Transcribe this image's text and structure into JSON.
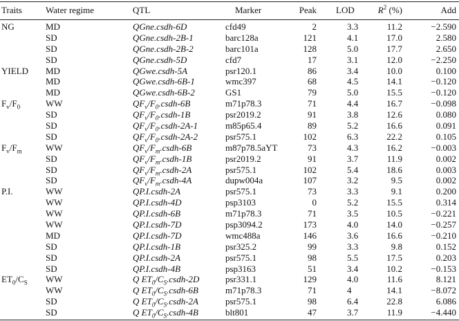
{
  "table": {
    "header": [
      "Traits",
      "Water regime",
      "QTL",
      "Marker",
      "Peak",
      "LOD",
      [
        {
          "it": "R"
        },
        {
          "sup": "2"
        },
        " (%)"
      ],
      "Add"
    ],
    "rows": [
      [
        "NG",
        "MD",
        "QGne.csdh-6D",
        "cfd49",
        "2",
        "3.3",
        "11.2",
        "−2.590"
      ],
      [
        null,
        "SD",
        "QGne.csdh-2B-1",
        "barc128a",
        "121",
        "4.1",
        "17.0",
        "2.580"
      ],
      [
        null,
        "SD",
        "QGne.csdh-2B-2",
        "barc101a",
        "128",
        "5.0",
        "17.7",
        "2.650"
      ],
      [
        null,
        "SD",
        "QGne.csdh-5D",
        "cfd7",
        "17",
        "3.1",
        "12.0",
        "−2.250"
      ],
      [
        "YIELD",
        "MD",
        "QGwe.csdh-5A",
        "psr120.1",
        "86",
        "3.4",
        "10.0",
        "0.100"
      ],
      [
        null,
        "MD",
        "QGwe.csdh-6B-1",
        "wmc397",
        "68",
        "4.5",
        "14.1",
        "−0.120"
      ],
      [
        null,
        "MD",
        "QGwe.csdh-6B-2",
        "GS1",
        "79",
        "5.0",
        "15.5",
        "−0.120"
      ],
      [
        [
          "F",
          {
            "sub": "v"
          },
          "/F",
          {
            "sub": "0"
          }
        ],
        "WW",
        [
          "QF",
          {
            "sub": "v"
          },
          "/F",
          {
            "sub": "0"
          },
          ".csdh-6B"
        ],
        "m71p78.3",
        "71",
        "4.4",
        "16.7",
        "−0.098"
      ],
      [
        null,
        "SD",
        [
          "QF",
          {
            "sub": "v"
          },
          "/F",
          {
            "sub": "0"
          },
          ".csdh-1B"
        ],
        "psr2019.2",
        "91",
        "3.8",
        "12.6",
        "0.080"
      ],
      [
        null,
        "SD",
        [
          "QF",
          {
            "sub": "v"
          },
          "/F",
          {
            "sub": "0"
          },
          ".csdh-2A-1"
        ],
        "m85p65.4",
        "89",
        "5.2",
        "16.6",
        "0.091"
      ],
      [
        null,
        "SD",
        [
          "QF",
          {
            "sub": "v"
          },
          "/F",
          {
            "sub": "0"
          },
          ".csdh-2A-2"
        ],
        "psr575.1",
        "102",
        "6.3",
        "22.2",
        "0.105"
      ],
      [
        [
          "F",
          {
            "sub": "v"
          },
          "/F",
          {
            "sub": "m"
          }
        ],
        "WW",
        [
          "QF",
          {
            "sub": "v"
          },
          "/F",
          {
            "sub": "m"
          },
          ".csdh-6B"
        ],
        "m87p78.5aYT",
        "73",
        "4.3",
        "16.2",
        "−0.003"
      ],
      [
        null,
        "SD",
        [
          "QF",
          {
            "sub": "v"
          },
          "/F",
          {
            "sub": "m"
          },
          ".csdh-1B"
        ],
        "psr2019.2",
        "91",
        "3.7",
        "11.9",
        "0.002"
      ],
      [
        null,
        "SD",
        [
          "QF",
          {
            "sub": "v"
          },
          "/F",
          {
            "sub": "m"
          },
          ".csdh-2A"
        ],
        "psr575.1",
        "102",
        "5.4",
        "18.6",
        "0.003"
      ],
      [
        null,
        "SD",
        [
          "QF",
          {
            "sub": "v"
          },
          "/F",
          {
            "sub": "m"
          },
          ".csdh-4A"
        ],
        "dupw004a",
        "107",
        "3.2",
        "9.5",
        "0.002"
      ],
      [
        "P.I.",
        "WW",
        "QP.I.csdh-2A",
        "psr575.1",
        "73",
        "3.3",
        "9.1",
        "0.200"
      ],
      [
        null,
        "WW",
        "QP.I.csdh-4D",
        "psp3103",
        "0",
        "5.2",
        "15.5",
        "0.314"
      ],
      [
        null,
        "WW",
        "QP.I.csdh-6B",
        "m71p78.3",
        "71",
        "3.5",
        "10.5",
        "−0.221"
      ],
      [
        null,
        "WW",
        "QP.I.csdh-7D",
        "psp3094.2",
        "173",
        "4.0",
        "14.0",
        "−0.257"
      ],
      [
        null,
        "MD",
        "QP.I.csdh-7D",
        "wmc488a",
        "146",
        "3.6",
        "16.6",
        "−0.210"
      ],
      [
        null,
        "SD",
        "QP.I.csdh-1B",
        "psr325.2",
        "99",
        "3.3",
        "9.8",
        "0.152"
      ],
      [
        null,
        "SD",
        "QP.I.csdh-2A",
        "psr575.1",
        "98",
        "5.5",
        "17.5",
        "0.203"
      ],
      [
        null,
        "SD",
        "QP.I.csdh-4B",
        "psp3163",
        "51",
        "3.4",
        "10.2",
        "−0.153"
      ],
      [
        [
          "ET",
          {
            "sub": "0"
          },
          "/C",
          {
            "sub": "S"
          }
        ],
        "WW",
        [
          "Q ET",
          {
            "sub": "0"
          },
          "/C",
          {
            "sub": "S"
          },
          ".csdh-2D"
        ],
        "psr331.1",
        "129",
        "4.0",
        "11.6",
        "8.121"
      ],
      [
        null,
        "WW",
        [
          "Q ET",
          {
            "sub": "0"
          },
          "/C",
          {
            "sub": "S"
          },
          ".csdh-6B"
        ],
        "m71p78.3",
        "71",
        "4",
        "14.1",
        "−8.072"
      ],
      [
        null,
        "SD",
        [
          "Q ET",
          {
            "sub": "0"
          },
          "/C",
          {
            "sub": "S"
          },
          ".csdh-2A"
        ],
        "psr575.1",
        "98",
        "6.4",
        "22.8",
        "6.086"
      ],
      [
        null,
        "SD",
        [
          "Q ET",
          {
            "sub": "0"
          },
          "/C",
          {
            "sub": "S"
          },
          ".csdh-4B"
        ],
        "blt801",
        "47",
        "3.7",
        "11.9",
        "−4.440"
      ]
    ]
  }
}
